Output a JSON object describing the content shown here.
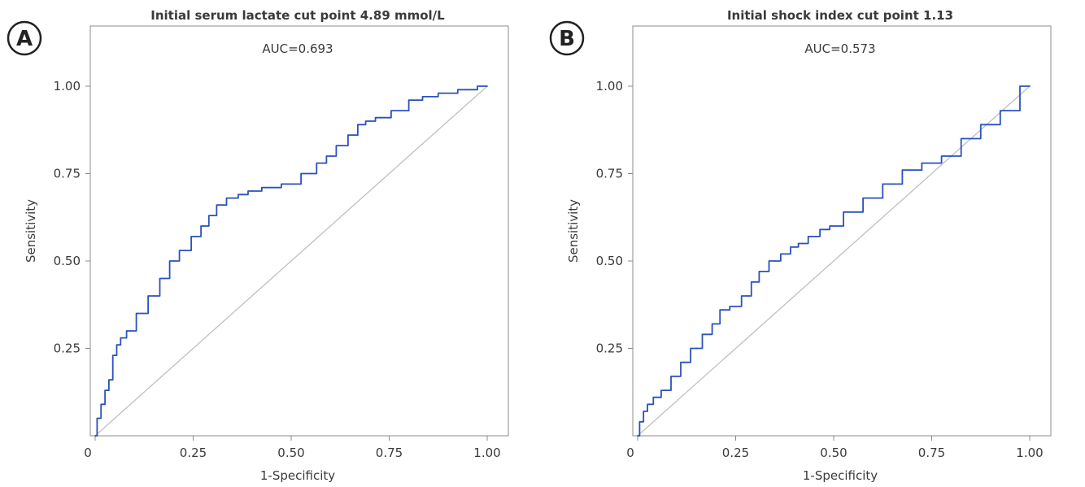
{
  "chart_data": [
    {
      "panel": "A",
      "type": "line",
      "title": "Initial serum lactate cut point 4.89 mmol/L",
      "subtitle": "AUC=0.693",
      "xlabel": "1-Specificity",
      "ylabel": "Sensitivity",
      "xlim": [
        0,
        1
      ],
      "ylim": [
        0,
        1
      ],
      "xticks": [
        0,
        0.25,
        0.5,
        0.75,
        1.0
      ],
      "xtick_labels": [
        "0",
        "0.25",
        "0.50",
        "0.75",
        "1.00"
      ],
      "yticks": [
        0.25,
        0.5,
        0.75,
        1.0
      ],
      "ytick_labels": [
        "0.25",
        "0.50",
        "0.75",
        "1.00"
      ],
      "grid": false,
      "reference_line": {
        "x": [
          0,
          1
        ],
        "y": [
          0,
          1
        ],
        "color": "#bfbfbf"
      },
      "series": [
        {
          "color": "#2a52be",
          "x": [
            0.0,
            0.01,
            0.02,
            0.03,
            0.04,
            0.05,
            0.06,
            0.07,
            0.09,
            0.12,
            0.15,
            0.18,
            0.2,
            0.23,
            0.26,
            0.28,
            0.3,
            0.32,
            0.35,
            0.38,
            0.4,
            0.45,
            0.5,
            0.55,
            0.58,
            0.6,
            0.63,
            0.66,
            0.68,
            0.7,
            0.73,
            0.78,
            0.82,
            0.85,
            0.9,
            0.95,
            1.0
          ],
          "y": [
            0.0,
            0.05,
            0.09,
            0.13,
            0.16,
            0.23,
            0.26,
            0.28,
            0.3,
            0.35,
            0.4,
            0.45,
            0.5,
            0.53,
            0.57,
            0.6,
            0.63,
            0.66,
            0.68,
            0.69,
            0.7,
            0.71,
            0.72,
            0.75,
            0.78,
            0.8,
            0.83,
            0.86,
            0.89,
            0.9,
            0.91,
            0.93,
            0.96,
            0.97,
            0.98,
            0.99,
            1.0
          ]
        }
      ]
    },
    {
      "panel": "B",
      "type": "line",
      "title": "Initial shock index cut point 1.13",
      "subtitle": "AUC=0.573",
      "xlabel": "1-Specificity",
      "ylabel": "Sensitivity",
      "xlim": [
        0,
        1
      ],
      "ylim": [
        0,
        1
      ],
      "xticks": [
        0,
        0.25,
        0.5,
        0.75,
        1.0
      ],
      "xtick_labels": [
        "0",
        "0.25",
        "0.50",
        "0.75",
        "1.00"
      ],
      "yticks": [
        0.25,
        0.5,
        0.75,
        1.0
      ],
      "ytick_labels": [
        "0.25",
        "0.50",
        "0.75",
        "1.00"
      ],
      "grid": false,
      "reference_line": {
        "x": [
          0,
          1
        ],
        "y": [
          0,
          1
        ],
        "color": "#bfbfbf"
      },
      "series": [
        {
          "color": "#2a52be",
          "x": [
            0.0,
            0.01,
            0.02,
            0.03,
            0.05,
            0.07,
            0.1,
            0.12,
            0.15,
            0.18,
            0.2,
            0.22,
            0.25,
            0.28,
            0.3,
            0.32,
            0.35,
            0.38,
            0.4,
            0.42,
            0.45,
            0.48,
            0.5,
            0.55,
            0.6,
            0.65,
            0.7,
            0.75,
            0.8,
            0.85,
            0.9,
            0.95,
            1.0
          ],
          "y": [
            0.0,
            0.04,
            0.07,
            0.09,
            0.11,
            0.13,
            0.17,
            0.21,
            0.25,
            0.29,
            0.32,
            0.36,
            0.37,
            0.4,
            0.44,
            0.47,
            0.5,
            0.52,
            0.54,
            0.55,
            0.57,
            0.59,
            0.6,
            0.64,
            0.68,
            0.72,
            0.76,
            0.78,
            0.8,
            0.85,
            0.89,
            0.93,
            1.0
          ]
        }
      ]
    }
  ],
  "badges": [
    "A",
    "B"
  ]
}
